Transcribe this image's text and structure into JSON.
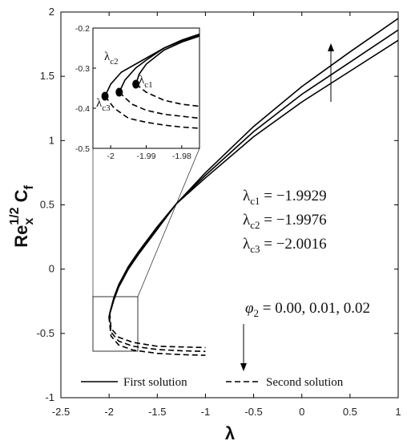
{
  "chart_data": {
    "type": "line",
    "title": "",
    "xlabel": "λ",
    "ylabel": {
      "base": "Re",
      "sub": "x",
      "sup": "1/2",
      "main": " C",
      "main_sub": "f"
    },
    "xlim": [
      -2.5,
      1
    ],
    "ylim": [
      -1,
      2
    ],
    "xticks": [
      "-2.5",
      "-2",
      "-1.5",
      "-1",
      "-0.5",
      "0",
      "0.5",
      "1"
    ],
    "yticks": [
      "-1",
      "-0.5",
      "0",
      "0.5",
      "1",
      "1.5",
      "2"
    ],
    "series": [
      {
        "name": "First solution",
        "style": "solid",
        "variant": "phi=0.00",
        "points": [
          [
            -1.9929,
            -0.34
          ],
          [
            -1.95,
            -0.22
          ],
          [
            -1.9,
            -0.12
          ],
          [
            -1.8,
            0.02
          ],
          [
            -1.7,
            0.13
          ],
          [
            -1.6,
            0.23
          ],
          [
            -1.5,
            0.33
          ],
          [
            -1.4,
            0.42
          ],
          [
            -1.3,
            0.51
          ],
          [
            -1.0,
            0.71
          ],
          [
            -0.5,
            1.03
          ],
          [
            0,
            1.3
          ],
          [
            0.5,
            1.54
          ],
          [
            1,
            1.78
          ]
        ]
      },
      {
        "name": "First solution",
        "style": "solid",
        "variant": "phi=0.01",
        "points": [
          [
            -1.9976,
            -0.36
          ],
          [
            -1.95,
            -0.23
          ],
          [
            -1.9,
            -0.13
          ],
          [
            -1.8,
            0.01
          ],
          [
            -1.7,
            0.12
          ],
          [
            -1.6,
            0.22
          ],
          [
            -1.5,
            0.32
          ],
          [
            -1.4,
            0.42
          ],
          [
            -1.3,
            0.51
          ],
          [
            -1.0,
            0.73
          ],
          [
            -0.5,
            1.07
          ],
          [
            0,
            1.36
          ],
          [
            0.5,
            1.61
          ],
          [
            1,
            1.86
          ]
        ]
      },
      {
        "name": "First solution",
        "style": "solid",
        "variant": "phi=0.02",
        "points": [
          [
            -2.0016,
            -0.37
          ],
          [
            -1.95,
            -0.24
          ],
          [
            -1.9,
            -0.14
          ],
          [
            -1.8,
            0.0
          ],
          [
            -1.7,
            0.11
          ],
          [
            -1.6,
            0.21
          ],
          [
            -1.5,
            0.31
          ],
          [
            -1.4,
            0.41
          ],
          [
            -1.3,
            0.51
          ],
          [
            -1.0,
            0.75
          ],
          [
            -0.5,
            1.11
          ],
          [
            0,
            1.42
          ],
          [
            0.5,
            1.69
          ],
          [
            1,
            1.95
          ]
        ]
      },
      {
        "name": "Second solution",
        "style": "dashed",
        "variant": "phi=0.00",
        "points": [
          [
            -1.9929,
            -0.34
          ],
          [
            -1.98,
            -0.46
          ],
          [
            -1.9,
            -0.53
          ],
          [
            -1.75,
            -0.57
          ],
          [
            -1.5,
            -0.6
          ],
          [
            -1.25,
            -0.605
          ],
          [
            -1,
            -0.61
          ]
        ]
      },
      {
        "name": "Second solution",
        "style": "dashed",
        "variant": "phi=0.01",
        "points": [
          [
            -1.9976,
            -0.36
          ],
          [
            -1.98,
            -0.49
          ],
          [
            -1.9,
            -0.56
          ],
          [
            -1.75,
            -0.6
          ],
          [
            -1.5,
            -0.625
          ],
          [
            -1.25,
            -0.635
          ],
          [
            -1,
            -0.64
          ]
        ]
      },
      {
        "name": "Second solution",
        "style": "dashed",
        "variant": "phi=0.02",
        "points": [
          [
            -2.0016,
            -0.37
          ],
          [
            -1.98,
            -0.52
          ],
          [
            -1.9,
            -0.59
          ],
          [
            -1.75,
            -0.63
          ],
          [
            -1.5,
            -0.655
          ],
          [
            -1.25,
            -0.665
          ],
          [
            -1,
            -0.67
          ]
        ]
      }
    ],
    "zoom_box": {
      "xlim": [
        -2.005,
        -1.975
      ],
      "ylim": [
        -0.5,
        -0.2
      ]
    },
    "inset": {
      "xlim": [
        -2.005,
        -1.975
      ],
      "ylim": [
        -0.5,
        -0.2
      ],
      "xticks": [
        "-2",
        "-1.99",
        "-1.98"
      ],
      "yticks": [
        "-0.2",
        "-0.3",
        "-0.4",
        "-0.5"
      ],
      "critical_points": [
        {
          "label": "λ",
          "sub": "c1",
          "x": -1.9929,
          "y": -0.34
        },
        {
          "label": "λ",
          "sub": "c2",
          "x": -1.9976,
          "y": -0.36
        },
        {
          "label": "λ",
          "sub": "c3",
          "x": -2.0016,
          "y": -0.37
        }
      ]
    },
    "annotations": {
      "lambda_c": [
        {
          "sub": "c1",
          "value": "−1.9929"
        },
        {
          "sub": "c2",
          "value": "−1.9976"
        },
        {
          "sub": "c3",
          "value": "−2.0016"
        }
      ],
      "phi": {
        "label": "φ",
        "sub": "2",
        "values": "0.00, 0.01, 0.02"
      }
    },
    "legend": {
      "placement": "bottom",
      "entries": [
        {
          "label": "First solution",
          "style": "solid"
        },
        {
          "label": "Second solution",
          "style": "dashed"
        }
      ]
    },
    "grid": false
  }
}
